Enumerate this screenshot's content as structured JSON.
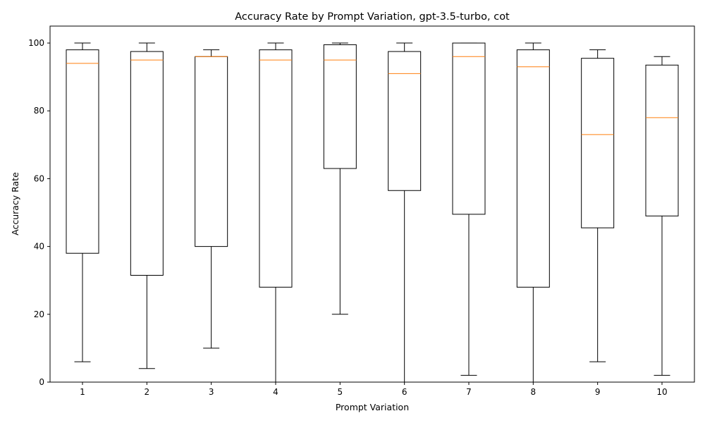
{
  "chart_data": {
    "type": "boxplot",
    "title": "Accuracy Rate by Prompt Variation, gpt-3.5-turbo, cot",
    "xlabel": "Prompt Variation",
    "ylabel": "Accuracy Rate",
    "ylim": [
      0,
      105
    ],
    "yticks": [
      0,
      20,
      40,
      60,
      80,
      100
    ],
    "categories": [
      "1",
      "2",
      "3",
      "4",
      "5",
      "6",
      "7",
      "8",
      "9",
      "10"
    ],
    "boxes": [
      {
        "whisker_low": 6,
        "q1": 38,
        "median": 94,
        "q3": 98,
        "whisker_high": 100
      },
      {
        "whisker_low": 4,
        "q1": 31.5,
        "median": 95,
        "q3": 97.5,
        "whisker_high": 100
      },
      {
        "whisker_low": 10,
        "q1": 40,
        "median": 96,
        "q3": 96,
        "whisker_high": 98
      },
      {
        "whisker_low": 0,
        "q1": 28,
        "median": 95,
        "q3": 98,
        "whisker_high": 100
      },
      {
        "whisker_low": 20,
        "q1": 63,
        "median": 95,
        "q3": 99.5,
        "whisker_high": 100
      },
      {
        "whisker_low": 0,
        "q1": 56.5,
        "median": 91,
        "q3": 97.5,
        "whisker_high": 100
      },
      {
        "whisker_low": 2,
        "q1": 49.5,
        "median": 96,
        "q3": 100,
        "whisker_high": 100
      },
      {
        "whisker_low": 0,
        "q1": 28,
        "median": 93,
        "q3": 98,
        "whisker_high": 100
      },
      {
        "whisker_low": 6,
        "q1": 45.5,
        "median": 73,
        "q3": 95.5,
        "whisker_high": 98
      },
      {
        "whisker_low": 2,
        "q1": 49,
        "median": 78,
        "q3": 93.5,
        "whisker_high": 96
      }
    ],
    "box_color": "#000000",
    "median_color": "#ff7f0e",
    "grid": false,
    "legend": "none"
  }
}
